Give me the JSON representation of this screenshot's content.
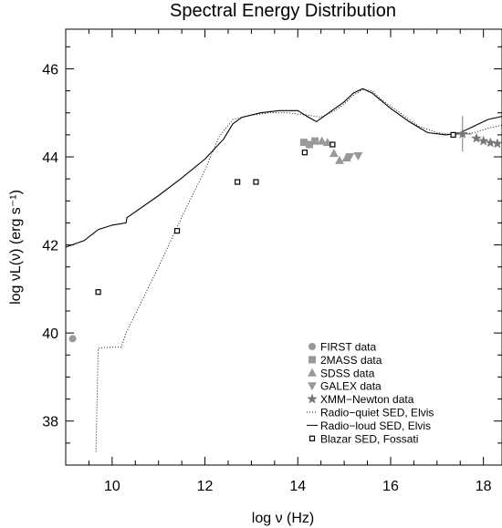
{
  "chart_data": {
    "type": "scatter",
    "title": "Spectral Energy Distribution",
    "xlabel": "log ν (Hz)",
    "ylabel": "log νL(ν) (erg s⁻¹)",
    "xlim": [
      9.0,
      18.4
    ],
    "ylim": [
      37.0,
      46.9
    ],
    "x_ticks": [
      10,
      12,
      14,
      16,
      18
    ],
    "y_ticks": [
      38,
      40,
      42,
      44,
      46
    ],
    "x_tick_labels": [
      "10",
      "12",
      "14",
      "16",
      "18"
    ],
    "y_tick_labels": [
      "38",
      "40",
      "42",
      "44",
      "46"
    ],
    "grid": false,
    "legend_position": "bottom-right",
    "series": [
      {
        "name": "FIRST data",
        "kind": "points",
        "marker": "circle",
        "color": "#999999",
        "points": [
          [
            9.15,
            39.87
          ]
        ]
      },
      {
        "name": "2MASS data",
        "kind": "points",
        "marker": "square",
        "color": "#999999",
        "points": [
          [
            14.13,
            44.33
          ],
          [
            14.25,
            44.28
          ],
          [
            14.37,
            44.36
          ]
        ]
      },
      {
        "name": "SDSS data",
        "kind": "points",
        "marker": "triangle-up",
        "color": "#999999",
        "points": [
          [
            14.52,
            44.36
          ],
          [
            14.64,
            44.33
          ],
          [
            14.78,
            44.08
          ],
          [
            14.9,
            43.92
          ],
          [
            15.05,
            43.98
          ]
        ]
      },
      {
        "name": "GALEX data",
        "kind": "points",
        "marker": "triangle-down",
        "color": "#999999",
        "points": [
          [
            15.12,
            44.0
          ],
          [
            15.3,
            44.02
          ]
        ]
      },
      {
        "name": "XMM−Newton data",
        "kind": "points",
        "marker": "star",
        "color": "#777777",
        "points": [
          [
            17.55,
            44.52
          ],
          [
            17.85,
            44.42
          ],
          [
            18.0,
            44.36
          ],
          [
            18.15,
            44.32
          ],
          [
            18.3,
            44.3
          ]
        ]
      },
      {
        "name": "Radio−quiet SED, Elvis",
        "kind": "line",
        "dash": "dotted",
        "color": "#000000",
        "points": [
          [
            9.65,
            37.3
          ],
          [
            9.7,
            39.65
          ],
          [
            9.8,
            39.67
          ],
          [
            10.2,
            39.68
          ],
          [
            10.3,
            40.0
          ],
          [
            11.0,
            41.5
          ],
          [
            11.6,
            42.85
          ],
          [
            12.0,
            43.7
          ],
          [
            12.3,
            44.45
          ],
          [
            12.6,
            44.85
          ],
          [
            13.0,
            44.95
          ],
          [
            13.4,
            45.0
          ],
          [
            13.8,
            45.0
          ],
          [
            14.2,
            44.95
          ],
          [
            14.5,
            44.9
          ],
          [
            14.8,
            45.05
          ],
          [
            15.0,
            45.2
          ],
          [
            15.2,
            45.4
          ],
          [
            15.4,
            45.53
          ],
          [
            15.6,
            45.5
          ],
          [
            15.8,
            45.3
          ],
          [
            16.2,
            45.0
          ],
          [
            16.6,
            44.7
          ],
          [
            17.0,
            44.55
          ],
          [
            17.4,
            44.5
          ],
          [
            17.8,
            44.55
          ],
          [
            18.1,
            44.65
          ],
          [
            18.4,
            44.72
          ]
        ]
      },
      {
        "name": "Radio−loud SED, Elvis",
        "kind": "line",
        "dash": "solid",
        "color": "#000000",
        "points": [
          [
            9.0,
            41.95
          ],
          [
            9.4,
            42.1
          ],
          [
            9.7,
            42.35
          ],
          [
            10.0,
            42.45
          ],
          [
            10.3,
            42.5
          ],
          [
            10.32,
            42.62
          ],
          [
            11.0,
            43.12
          ],
          [
            11.5,
            43.52
          ],
          [
            12.0,
            43.95
          ],
          [
            12.4,
            44.4
          ],
          [
            12.6,
            44.75
          ],
          [
            12.8,
            44.9
          ],
          [
            13.2,
            45.0
          ],
          [
            13.6,
            45.05
          ],
          [
            14.0,
            45.05
          ],
          [
            14.2,
            44.92
          ],
          [
            14.4,
            44.8
          ],
          [
            14.6,
            44.95
          ],
          [
            15.0,
            45.25
          ],
          [
            15.2,
            45.45
          ],
          [
            15.4,
            45.55
          ],
          [
            15.6,
            45.45
          ],
          [
            16.0,
            45.1
          ],
          [
            16.4,
            44.8
          ],
          [
            16.8,
            44.55
          ],
          [
            17.2,
            44.5
          ],
          [
            17.5,
            44.55
          ],
          [
            17.8,
            44.7
          ],
          [
            18.1,
            44.85
          ],
          [
            18.4,
            44.92
          ]
        ]
      },
      {
        "name": "Blazar SED, Fossati",
        "kind": "points",
        "marker": "open-square",
        "color": "#000000",
        "points": [
          [
            9.7,
            40.93
          ],
          [
            11.4,
            42.32
          ],
          [
            12.7,
            43.43
          ],
          [
            13.1,
            43.43
          ],
          [
            14.15,
            44.1
          ],
          [
            14.75,
            44.28
          ],
          [
            17.35,
            44.5
          ]
        ]
      }
    ],
    "xmm_error_bar": {
      "x": 17.55,
      "y_low": 44.12,
      "y_high": 44.93,
      "x_low": 17.35,
      "x_high": 17.75
    },
    "legend": [
      {
        "label": "FIRST data",
        "marker": "circle",
        "color": "#999999"
      },
      {
        "label": "2MASS data",
        "marker": "square",
        "color": "#999999"
      },
      {
        "label": "SDSS data",
        "marker": "triangle-up",
        "color": "#999999"
      },
      {
        "label": "GALEX data",
        "marker": "triangle-down",
        "color": "#999999"
      },
      {
        "label": "XMM−Newton data",
        "marker": "star",
        "color": "#777777"
      },
      {
        "label": "Radio−quiet SED, Elvis",
        "marker": "dotted-line",
        "color": "#000000"
      },
      {
        "label": "Radio−loud SED, Elvis",
        "marker": "solid-line",
        "color": "#000000"
      },
      {
        "label": "Blazar SED, Fossati",
        "marker": "open-square",
        "color": "#000000"
      }
    ]
  }
}
